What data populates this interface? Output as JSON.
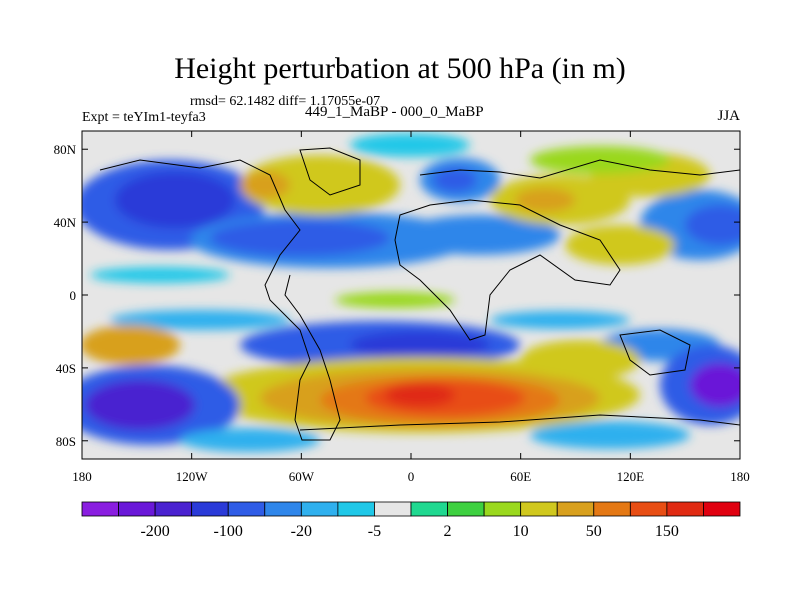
{
  "title": "Height perturbation at 500 hPa (in m)",
  "stats": "rmsd= 62.1482 diff= 1.17055e-07",
  "experiment": "Expt = teYIm1-teyfa3",
  "comparison": "449_1_MaBP - 000_0_MaBP",
  "season": "JJA",
  "map": {
    "lon_range": [
      -180,
      180
    ],
    "lat_range": [
      -90,
      90
    ],
    "lat_ticks": [
      {
        "value": 80,
        "label": "80N"
      },
      {
        "value": 40,
        "label": "40N"
      },
      {
        "value": 0,
        "label": "0"
      },
      {
        "value": -40,
        "label": "40S"
      },
      {
        "value": -80,
        "label": "80S"
      }
    ],
    "lon_ticks": [
      {
        "value": -180,
        "label": "180"
      },
      {
        "value": -120,
        "label": "120W"
      },
      {
        "value": -60,
        "label": "60W"
      },
      {
        "value": 0,
        "label": "0"
      },
      {
        "value": 60,
        "label": "60E"
      },
      {
        "value": 120,
        "label": "120E"
      },
      {
        "value": 180,
        "label": "180"
      }
    ]
  },
  "colorbar": {
    "colors": [
      "#8a1ee0",
      "#6a18d8",
      "#4a22d0",
      "#2a3ad8",
      "#2f5ce6",
      "#2f86ea",
      "#2fb0ee",
      "#20c8e8",
      "#e6e6e6",
      "#20d890",
      "#3ed040",
      "#9ad81e",
      "#d0c81e",
      "#d8a01e",
      "#e47814",
      "#e84e14",
      "#e02a12",
      "#e00010"
    ],
    "labels": [
      {
        "after_index": 1,
        "text": "-200"
      },
      {
        "after_index": 3,
        "text": "-100"
      },
      {
        "after_index": 5,
        "text": "-20"
      },
      {
        "after_index": 7,
        "text": "-5"
      },
      {
        "after_index": 9,
        "text": "2"
      },
      {
        "after_index": 11,
        "text": "10"
      },
      {
        "after_index": 13,
        "text": "50"
      },
      {
        "after_index": 15,
        "text": "150"
      }
    ]
  }
}
